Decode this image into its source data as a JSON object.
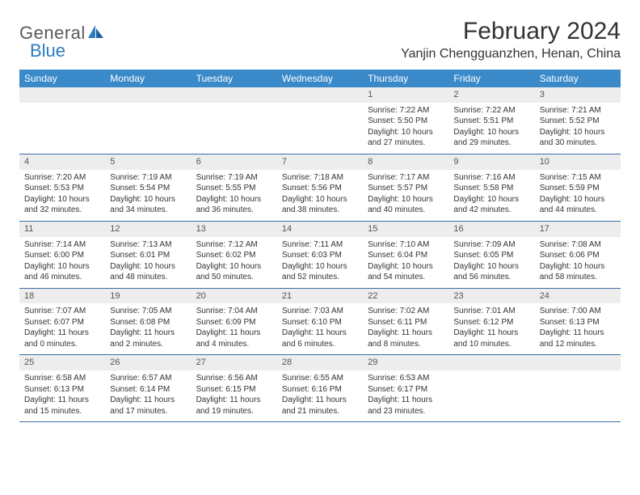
{
  "logo": {
    "text1": "General",
    "text2": "Blue"
  },
  "title": "February 2024",
  "location": "Yanjin Chengguanzhen, Henan, China",
  "colors": {
    "header_bg": "#3a89c9",
    "header_text": "#ffffff",
    "row_border": "#3a6ea5",
    "day_band_bg": "#ededed",
    "body_text": "#333333",
    "logo_gray": "#5a5a5a",
    "logo_blue": "#2b7bbf"
  },
  "weekdays": [
    "Sunday",
    "Monday",
    "Tuesday",
    "Wednesday",
    "Thursday",
    "Friday",
    "Saturday"
  ],
  "weeks": [
    [
      null,
      null,
      null,
      null,
      {
        "n": "1",
        "sr": "7:22 AM",
        "ss": "5:50 PM",
        "dl": "10 hours and 27 minutes."
      },
      {
        "n": "2",
        "sr": "7:22 AM",
        "ss": "5:51 PM",
        "dl": "10 hours and 29 minutes."
      },
      {
        "n": "3",
        "sr": "7:21 AM",
        "ss": "5:52 PM",
        "dl": "10 hours and 30 minutes."
      }
    ],
    [
      {
        "n": "4",
        "sr": "7:20 AM",
        "ss": "5:53 PM",
        "dl": "10 hours and 32 minutes."
      },
      {
        "n": "5",
        "sr": "7:19 AM",
        "ss": "5:54 PM",
        "dl": "10 hours and 34 minutes."
      },
      {
        "n": "6",
        "sr": "7:19 AM",
        "ss": "5:55 PM",
        "dl": "10 hours and 36 minutes."
      },
      {
        "n": "7",
        "sr": "7:18 AM",
        "ss": "5:56 PM",
        "dl": "10 hours and 38 minutes."
      },
      {
        "n": "8",
        "sr": "7:17 AM",
        "ss": "5:57 PM",
        "dl": "10 hours and 40 minutes."
      },
      {
        "n": "9",
        "sr": "7:16 AM",
        "ss": "5:58 PM",
        "dl": "10 hours and 42 minutes."
      },
      {
        "n": "10",
        "sr": "7:15 AM",
        "ss": "5:59 PM",
        "dl": "10 hours and 44 minutes."
      }
    ],
    [
      {
        "n": "11",
        "sr": "7:14 AM",
        "ss": "6:00 PM",
        "dl": "10 hours and 46 minutes."
      },
      {
        "n": "12",
        "sr": "7:13 AM",
        "ss": "6:01 PM",
        "dl": "10 hours and 48 minutes."
      },
      {
        "n": "13",
        "sr": "7:12 AM",
        "ss": "6:02 PM",
        "dl": "10 hours and 50 minutes."
      },
      {
        "n": "14",
        "sr": "7:11 AM",
        "ss": "6:03 PM",
        "dl": "10 hours and 52 minutes."
      },
      {
        "n": "15",
        "sr": "7:10 AM",
        "ss": "6:04 PM",
        "dl": "10 hours and 54 minutes."
      },
      {
        "n": "16",
        "sr": "7:09 AM",
        "ss": "6:05 PM",
        "dl": "10 hours and 56 minutes."
      },
      {
        "n": "17",
        "sr": "7:08 AM",
        "ss": "6:06 PM",
        "dl": "10 hours and 58 minutes."
      }
    ],
    [
      {
        "n": "18",
        "sr": "7:07 AM",
        "ss": "6:07 PM",
        "dl": "11 hours and 0 minutes."
      },
      {
        "n": "19",
        "sr": "7:05 AM",
        "ss": "6:08 PM",
        "dl": "11 hours and 2 minutes."
      },
      {
        "n": "20",
        "sr": "7:04 AM",
        "ss": "6:09 PM",
        "dl": "11 hours and 4 minutes."
      },
      {
        "n": "21",
        "sr": "7:03 AM",
        "ss": "6:10 PM",
        "dl": "11 hours and 6 minutes."
      },
      {
        "n": "22",
        "sr": "7:02 AM",
        "ss": "6:11 PM",
        "dl": "11 hours and 8 minutes."
      },
      {
        "n": "23",
        "sr": "7:01 AM",
        "ss": "6:12 PM",
        "dl": "11 hours and 10 minutes."
      },
      {
        "n": "24",
        "sr": "7:00 AM",
        "ss": "6:13 PM",
        "dl": "11 hours and 12 minutes."
      }
    ],
    [
      {
        "n": "25",
        "sr": "6:58 AM",
        "ss": "6:13 PM",
        "dl": "11 hours and 15 minutes."
      },
      {
        "n": "26",
        "sr": "6:57 AM",
        "ss": "6:14 PM",
        "dl": "11 hours and 17 minutes."
      },
      {
        "n": "27",
        "sr": "6:56 AM",
        "ss": "6:15 PM",
        "dl": "11 hours and 19 minutes."
      },
      {
        "n": "28",
        "sr": "6:55 AM",
        "ss": "6:16 PM",
        "dl": "11 hours and 21 minutes."
      },
      {
        "n": "29",
        "sr": "6:53 AM",
        "ss": "6:17 PM",
        "dl": "11 hours and 23 minutes."
      },
      null,
      null
    ]
  ],
  "labels": {
    "sunrise": "Sunrise: ",
    "sunset": "Sunset: ",
    "daylight": "Daylight: "
  }
}
